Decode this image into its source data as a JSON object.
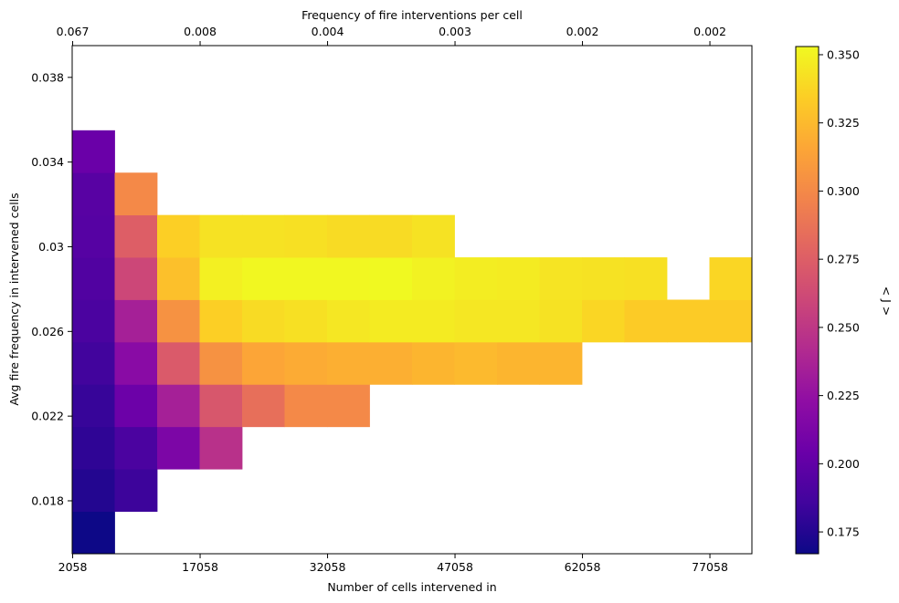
{
  "chart_data": {
    "type": "heatmap",
    "xlabel": "Number of cells intervened in",
    "ylabel": "Avg fire frequency in intervened cells",
    "top_xlabel": "Frequency of fire interventions per cell",
    "colorbar_label": "< J >",
    "colormap": "plasma",
    "x_tick_labels": [
      "2058",
      "17058",
      "32058",
      "47058",
      "62058",
      "77058"
    ],
    "x_tick_values": [
      2058,
      17058,
      32058,
      47058,
      62058,
      77058
    ],
    "xlim": [
      2000,
      82000
    ],
    "top_tick_labels": [
      "0.067",
      "0.008",
      "0.004",
      "0.003",
      "0.002",
      "0.002"
    ],
    "y_tick_labels": [
      "0.018",
      "0.022",
      "0.026",
      "0.03",
      "0.034",
      "0.038"
    ],
    "y_tick_values": [
      0.018,
      0.022,
      0.026,
      0.03,
      0.034,
      0.038
    ],
    "ylim": [
      0.0155,
      0.0395
    ],
    "colorbar_ticks": [
      "0.175",
      "0.200",
      "0.225",
      "0.250",
      "0.275",
      "0.300",
      "0.325",
      "0.350"
    ],
    "colorbar_tick_values": [
      0.175,
      0.2,
      0.225,
      0.25,
      0.275,
      0.3,
      0.325,
      0.35
    ],
    "colorbar_range": [
      0.167,
      0.353
    ],
    "x_bin_edges": [
      2000,
      7000,
      12000,
      17000,
      22000,
      27000,
      32000,
      37000,
      42000,
      47000,
      52000,
      57000,
      62000,
      67000,
      72000,
      77000,
      82000
    ],
    "y_bin_edges": [
      0.0155,
      0.0175,
      0.0195,
      0.0215,
      0.0235,
      0.0255,
      0.0275,
      0.0295,
      0.0315,
      0.0335,
      0.0355,
      0.0375,
      0.0395
    ],
    "values": [
      [
        0.167,
        null,
        null,
        null,
        null,
        null,
        null,
        null,
        null,
        null,
        null,
        null,
        null,
        null,
        null,
        null
      ],
      [
        0.175,
        0.184,
        null,
        null,
        null,
        null,
        null,
        null,
        null,
        null,
        null,
        null,
        null,
        null,
        null,
        null
      ],
      [
        0.179,
        0.19,
        0.213,
        0.246,
        null,
        null,
        null,
        null,
        null,
        null,
        null,
        null,
        null,
        null,
        null,
        null
      ],
      [
        0.182,
        0.205,
        0.235,
        0.27,
        0.285,
        0.3,
        0.3,
        null,
        null,
        null,
        null,
        null,
        null,
        null,
        null,
        null
      ],
      [
        0.186,
        0.22,
        0.272,
        0.305,
        0.315,
        0.318,
        0.32,
        0.32,
        0.323,
        0.325,
        0.323,
        0.323,
        null,
        null,
        null,
        null
      ],
      [
        0.19,
        0.235,
        0.305,
        0.335,
        0.34,
        0.342,
        0.345,
        0.347,
        0.347,
        0.345,
        0.345,
        0.343,
        0.338,
        0.333,
        0.333,
        0.333
      ],
      [
        0.193,
        0.26,
        0.328,
        0.349,
        0.352,
        0.352,
        0.352,
        0.353,
        0.35,
        0.348,
        0.347,
        0.344,
        0.343,
        0.342,
        null,
        0.338
      ],
      [
        0.195,
        0.275,
        0.335,
        0.343,
        0.343,
        0.342,
        0.34,
        0.34,
        0.343,
        null,
        null,
        null,
        null,
        null,
        null,
        null
      ],
      [
        0.196,
        0.3,
        null,
        null,
        null,
        null,
        null,
        null,
        null,
        null,
        null,
        null,
        null,
        null,
        null,
        null
      ],
      [
        0.204,
        null,
        null,
        null,
        null,
        null,
        null,
        null,
        null,
        null,
        null,
        null,
        null,
        null,
        null,
        null
      ],
      [
        null,
        null,
        null,
        null,
        null,
        null,
        null,
        null,
        null,
        null,
        null,
        null,
        null,
        null,
        null,
        null
      ],
      [
        null,
        null,
        null,
        null,
        null,
        null,
        null,
        null,
        null,
        null,
        null,
        null,
        null,
        null,
        null,
        null
      ]
    ],
    "grid": false,
    "legend": "colorbar-right"
  }
}
